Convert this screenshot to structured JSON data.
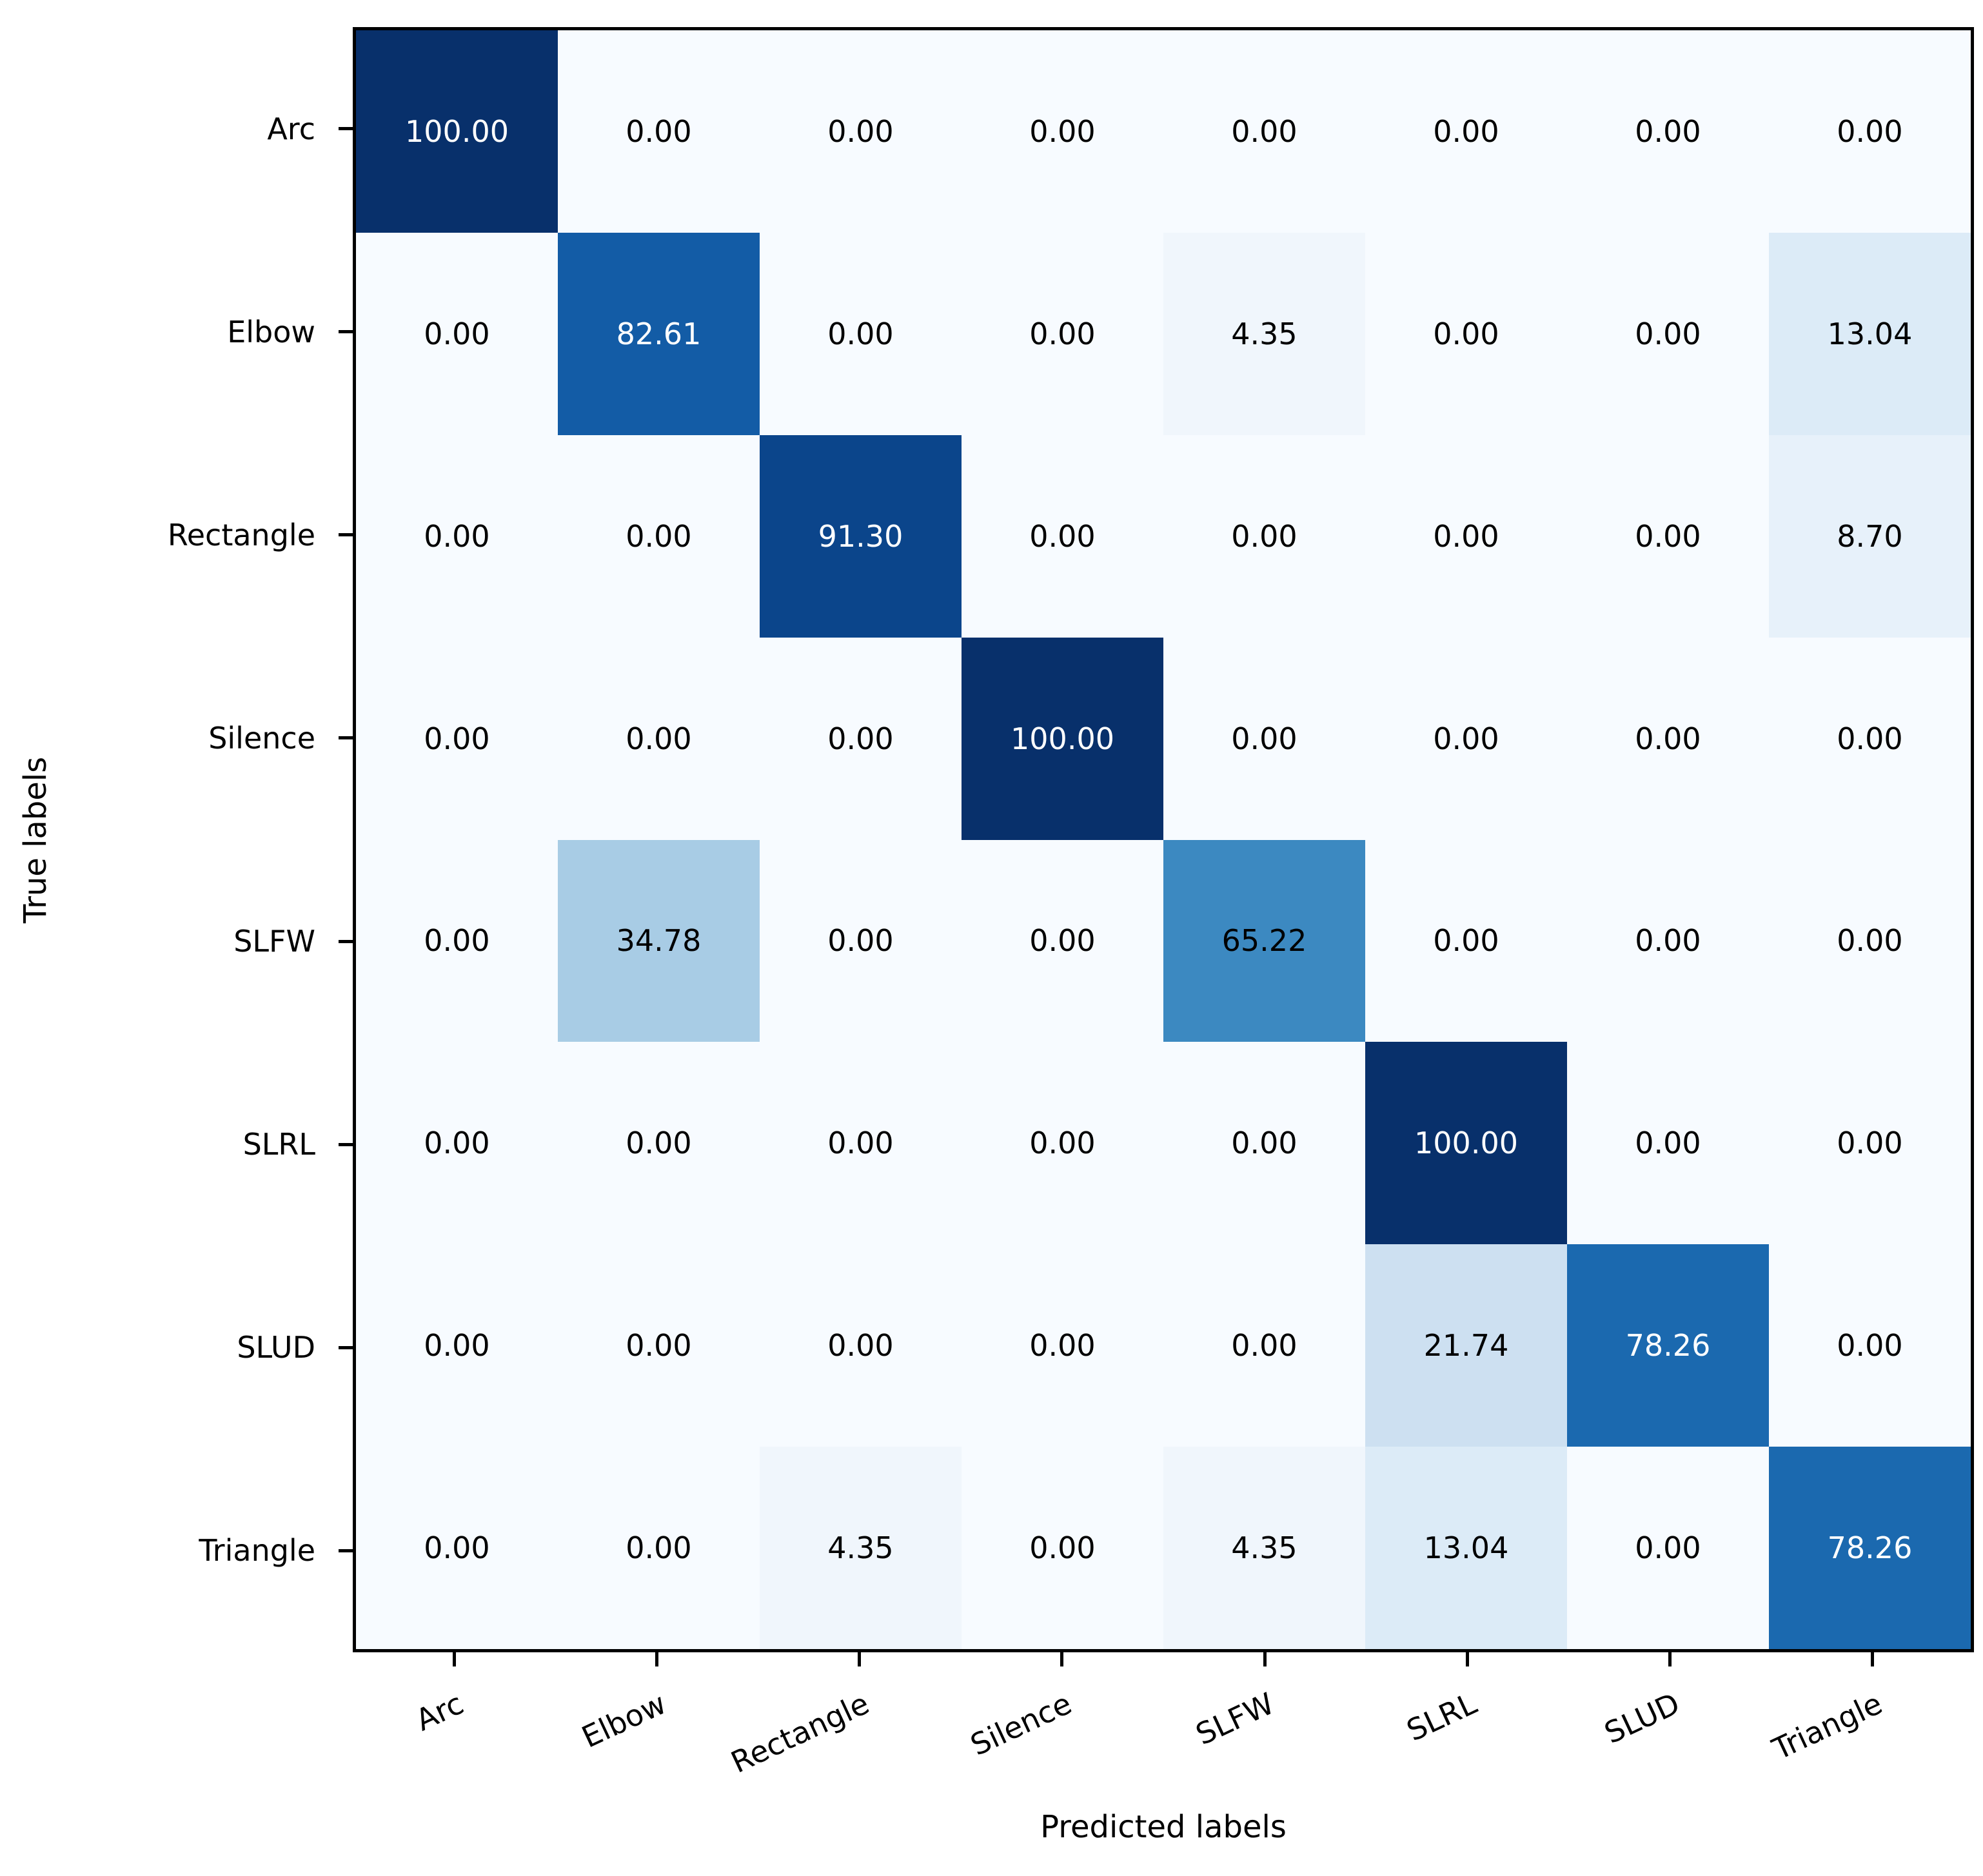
{
  "chart_data": {
    "type": "heatmap",
    "title": "",
    "xlabel": "Predicted labels",
    "ylabel": "True labels",
    "row_labels": [
      "Arc",
      "Elbow",
      "Rectangle",
      "Silence",
      "SLFW",
      "SLRL",
      "SLUD",
      "Triangle"
    ],
    "col_labels": [
      "Arc",
      "Elbow",
      "Rectangle",
      "Silence",
      "SLFW",
      "SLRL",
      "SLUD",
      "Triangle"
    ],
    "values": [
      [
        "100.00",
        "0.00",
        "0.00",
        "0.00",
        "0.00",
        "0.00",
        "0.00",
        "0.00"
      ],
      [
        "0.00",
        "82.61",
        "0.00",
        "0.00",
        "4.35",
        "0.00",
        "0.00",
        "13.04"
      ],
      [
        "0.00",
        "0.00",
        "91.30",
        "0.00",
        "0.00",
        "0.00",
        "0.00",
        "8.70"
      ],
      [
        "0.00",
        "0.00",
        "0.00",
        "100.00",
        "0.00",
        "0.00",
        "0.00",
        "0.00"
      ],
      [
        "0.00",
        "34.78",
        "0.00",
        "0.00",
        "65.22",
        "0.00",
        "0.00",
        "0.00"
      ],
      [
        "0.00",
        "0.00",
        "0.00",
        "0.00",
        "0.00",
        "100.00",
        "0.00",
        "0.00"
      ],
      [
        "0.00",
        "0.00",
        "0.00",
        "0.00",
        "0.00",
        "21.74",
        "78.26",
        "0.00"
      ],
      [
        "0.00",
        "0.00",
        "4.35",
        "0.00",
        "4.35",
        "13.04",
        "0.00",
        "78.26"
      ]
    ],
    "colormap": "Blues",
    "vmin": 0,
    "vmax": 100,
    "value_colors": {
      "0.00": "#f7fbff",
      "4.35": "#f0f6fc",
      "8.70": "#e7f1fa",
      "13.04": "#dcebf7",
      "21.74": "#cde0f1",
      "34.78": "#a8cce5",
      "65.22": "#3c89c1",
      "78.26": "#1b69af",
      "82.61": "#135ca6",
      "91.30": "#0b458b",
      "100.00": "#08306b"
    },
    "white_text_min": 70,
    "grid": false,
    "legend": "none"
  }
}
